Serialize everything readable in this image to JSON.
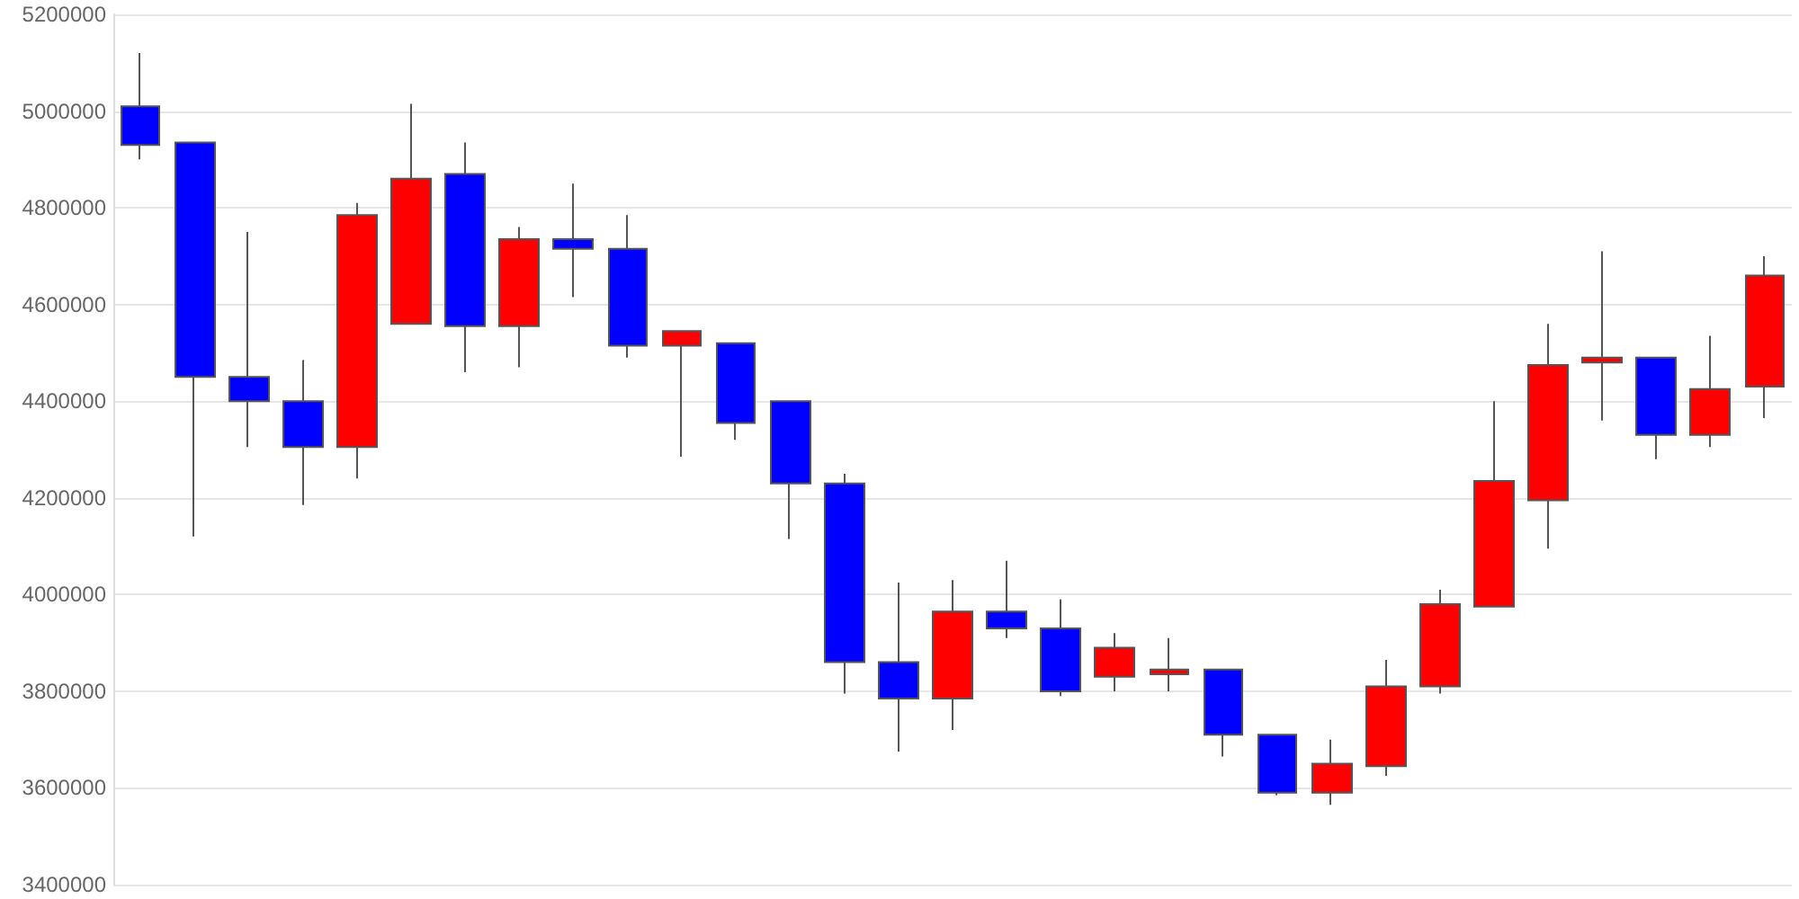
{
  "chart_data": {
    "type": "candlestick",
    "categories": [
      null,
      null,
      null,
      null,
      null,
      null,
      null,
      null,
      null,
      null,
      null,
      null,
      null,
      null,
      null,
      null,
      null,
      null,
      null,
      null,
      null,
      null,
      null,
      null,
      null,
      null,
      null,
      null,
      null,
      null,
      null
    ],
    "ohlc": [
      [
        5010000,
        5120000,
        4900000,
        4930000
      ],
      [
        4935000,
        4935000,
        4120000,
        4450000
      ],
      [
        4450000,
        4750000,
        4305000,
        4400000
      ],
      [
        4400000,
        4485000,
        4185000,
        4305000
      ],
      [
        4305000,
        4810000,
        4240000,
        4785000
      ],
      [
        4560000,
        5015000,
        4560000,
        4860000
      ],
      [
        4870000,
        4935000,
        4460000,
        4555000
      ],
      [
        4555000,
        4760000,
        4470000,
        4735000
      ],
      [
        4735000,
        4850000,
        4615000,
        4715000
      ],
      [
        4715000,
        4785000,
        4490000,
        4515000
      ],
      [
        4515000,
        4545000,
        4285000,
        4545000
      ],
      [
        4520000,
        4520000,
        4320000,
        4355000
      ],
      [
        4400000,
        4400000,
        4115000,
        4230000
      ],
      [
        4230000,
        4250000,
        3795000,
        3860000
      ],
      [
        3860000,
        4025000,
        3675000,
        3785000
      ],
      [
        3785000,
        4030000,
        3720000,
        3965000
      ],
      [
        3965000,
        4070000,
        3910000,
        3930000
      ],
      [
        3930000,
        3990000,
        3790000,
        3800000
      ],
      [
        3830000,
        3920000,
        3800000,
        3890000
      ],
      [
        3835000,
        3910000,
        3800000,
        3845000
      ],
      [
        3845000,
        3845000,
        3665000,
        3710000
      ],
      [
        3710000,
        3710000,
        3585000,
        3590000
      ],
      [
        3590000,
        3700000,
        3565000,
        3650000
      ],
      [
        3645000,
        3865000,
        3625000,
        3810000
      ],
      [
        3810000,
        4010000,
        3795000,
        3980000
      ],
      [
        3975000,
        4400000,
        3975000,
        4235000
      ],
      [
        4195000,
        4560000,
        4095000,
        4475000
      ],
      [
        4480000,
        4710000,
        4360000,
        4490000
      ],
      [
        4490000,
        4490000,
        4280000,
        4330000
      ],
      [
        4330000,
        4535000,
        4305000,
        4425000
      ],
      [
        4430000,
        4700000,
        4365000,
        4660000
      ]
    ],
    "colors": [
      "#0000ff",
      "#0000ff",
      "#0000ff",
      "#0000ff",
      "#ff0000",
      "#ff0000",
      "#0000ff",
      "#ff0000",
      "#0000ff",
      "#0000ff",
      "#ff0000",
      "#0000ff",
      "#0000ff",
      "#0000ff",
      "#0000ff",
      "#ff0000",
      "#0000ff",
      "#0000ff",
      "#ff0000",
      "#ff0000",
      "#0000ff",
      "#0000ff",
      "#ff0000",
      "#ff0000",
      "#ff0000",
      "#ff0000",
      "#ff0000",
      "#ff0000",
      "#0000ff",
      "#ff0000",
      "#ff0000"
    ],
    "ylim": [
      3400000,
      5200000
    ],
    "yticks": [
      3400000,
      3600000,
      3800000,
      4000000,
      4200000,
      4400000,
      4600000,
      4800000,
      5000000,
      5200000
    ],
    "grid": "y"
  }
}
